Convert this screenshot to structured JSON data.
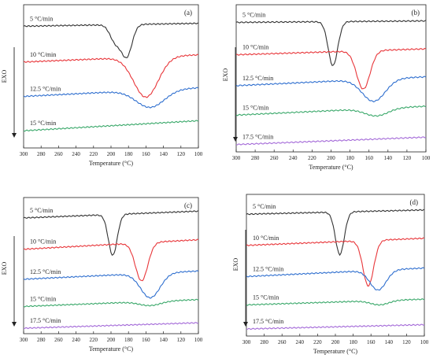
{
  "colors": {
    "black": "#333333",
    "red": "#e8363a",
    "blue": "#2f6fcf",
    "green": "#3aa86a",
    "purple": "#a46ad8"
  },
  "chart_data": [
    {
      "type": "line",
      "panel_label": "(a)",
      "xlabel": "Temperature (°C)",
      "ylabel": "EXO",
      "xlim": [
        300,
        100
      ],
      "x_ticks": [
        "300",
        "280",
        "260",
        "240",
        "220",
        "200",
        "180",
        "160",
        "140",
        "120",
        "100"
      ],
      "grid": false,
      "series": [
        {
          "name": "5 °C/min",
          "color": "#333333",
          "base": 0.85,
          "slope": 0.02,
          "peaks": [
            {
              "center": 195,
              "width": 6,
              "depth": 0.12
            },
            {
              "center": 182,
              "width": 6,
              "depth": 0.22
            }
          ]
        },
        {
          "name": "10 °C/min",
          "color": "#e8363a",
          "base": 0.6,
          "slope": 0.05,
          "peaks": [
            {
              "center": 160,
              "width": 14,
              "depth": 0.28
            }
          ]
        },
        {
          "name": "12.5 °C/min",
          "color": "#2f6fcf",
          "base": 0.36,
          "slope": 0.06,
          "peaks": [
            {
              "center": 155,
              "width": 16,
              "depth": 0.12
            }
          ]
        },
        {
          "name": "15 °C/min",
          "color": "#3aa86a",
          "base": 0.12,
          "slope": 0.07,
          "peaks": []
        }
      ]
    },
    {
      "type": "line",
      "panel_label": "(b)",
      "xlabel": "Temperature (°C)",
      "ylabel": "EXO",
      "xlim": [
        300,
        100
      ],
      "x_ticks": [
        "300",
        "280",
        "260",
        "240",
        "220",
        "200",
        "180",
        "160",
        "140",
        "120",
        "100"
      ],
      "grid": false,
      "series": [
        {
          "name": "5 °C/min",
          "color": "#333333",
          "base": 0.88,
          "slope": 0.01,
          "peaks": [
            {
              "center": 198,
              "width": 5,
              "depth": 0.3
            }
          ]
        },
        {
          "name": "10 °C/min",
          "color": "#e8363a",
          "base": 0.66,
          "slope": 0.04,
          "peaks": [
            {
              "center": 166,
              "width": 7,
              "depth": 0.26
            }
          ]
        },
        {
          "name": "12.5 °C/min",
          "color": "#2f6fcf",
          "base": 0.45,
          "slope": 0.06,
          "peaks": [
            {
              "center": 155,
              "width": 12,
              "depth": 0.15
            }
          ]
        },
        {
          "name": "15 °C/min",
          "color": "#3aa86a",
          "base": 0.25,
          "slope": 0.06,
          "peaks": [
            {
              "center": 152,
              "width": 12,
              "depth": 0.05
            }
          ]
        },
        {
          "name": "17.5 °C/min",
          "color": "#a46ad8",
          "base": 0.05,
          "slope": 0.05,
          "peaks": []
        }
      ]
    },
    {
      "type": "line",
      "panel_label": "(c)",
      "xlabel": "Temperature (°C)",
      "ylabel": "EXO",
      "xlim": [
        300,
        100
      ],
      "x_ticks": [
        "300",
        "280",
        "260",
        "240",
        "220",
        "200",
        "180",
        "160",
        "140",
        "120",
        "100"
      ],
      "grid": false,
      "series": [
        {
          "name": "5 °C/min",
          "color": "#333333",
          "base": 0.85,
          "slope": 0.05,
          "peaks": [
            {
              "center": 198,
              "width": 5,
              "depth": 0.3
            }
          ]
        },
        {
          "name": "10 °C/min",
          "color": "#e8363a",
          "base": 0.62,
          "slope": 0.07,
          "peaks": [
            {
              "center": 165,
              "width": 7,
              "depth": 0.28
            }
          ]
        },
        {
          "name": "12.5 °C/min",
          "color": "#2f6fcf",
          "base": 0.4,
          "slope": 0.06,
          "peaks": [
            {
              "center": 155,
              "width": 11,
              "depth": 0.18
            }
          ]
        },
        {
          "name": "15 °C/min",
          "color": "#3aa86a",
          "base": 0.2,
          "slope": 0.05,
          "peaks": [
            {
              "center": 155,
              "width": 12,
              "depth": 0.03
            }
          ]
        },
        {
          "name": "17.5 °C/min",
          "color": "#a46ad8",
          "base": 0.04,
          "slope": 0.04,
          "peaks": []
        }
      ]
    },
    {
      "type": "line",
      "panel_label": "(d)",
      "xlabel": "Temperature (°C)",
      "ylabel": "EXO",
      "xlim": [
        300,
        100
      ],
      "x_ticks": [
        "300",
        "280",
        "260",
        "240",
        "220",
        "200",
        "180",
        "160",
        "140",
        "120",
        "100"
      ],
      "grid": false,
      "series": [
        {
          "name": "5 °C/min",
          "color": "#333333",
          "base": 0.86,
          "slope": 0.03,
          "peaks": [
            {
              "center": 195,
              "width": 5,
              "depth": 0.3
            }
          ]
        },
        {
          "name": "10 °C/min",
          "color": "#e8363a",
          "base": 0.64,
          "slope": 0.05,
          "peaks": [
            {
              "center": 163,
              "width": 6,
              "depth": 0.32
            }
          ]
        },
        {
          "name": "12.5 °C/min",
          "color": "#2f6fcf",
          "base": 0.42,
          "slope": 0.06,
          "peaks": [
            {
              "center": 152,
              "width": 9,
              "depth": 0.14
            }
          ]
        },
        {
          "name": "15 °C/min",
          "color": "#3aa86a",
          "base": 0.22,
          "slope": 0.04,
          "peaks": [
            {
              "center": 150,
              "width": 10,
              "depth": 0.03
            }
          ]
        },
        {
          "name": "17.5 °C/min",
          "color": "#a46ad8",
          "base": 0.05,
          "slope": 0.03,
          "peaks": []
        }
      ]
    }
  ]
}
